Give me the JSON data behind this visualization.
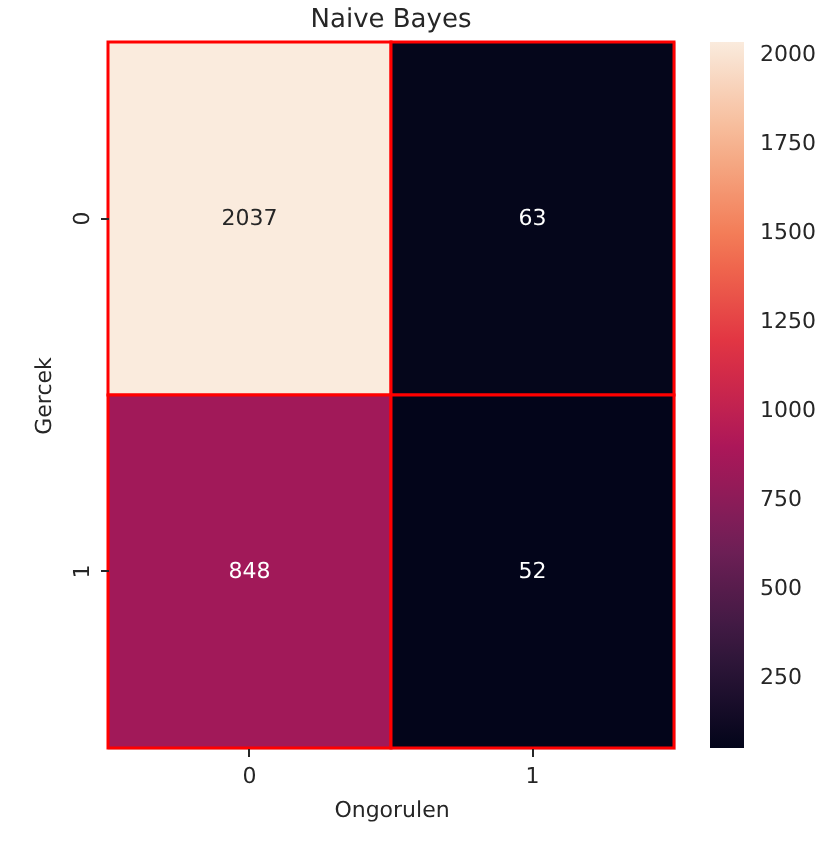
{
  "chart_data": {
    "type": "heatmap",
    "title": "Naive Bayes",
    "xlabel": "Ongorulen",
    "ylabel": "Gercek",
    "categories": [
      "0",
      "1"
    ],
    "y_categories": [
      "0",
      "1"
    ],
    "cells": [
      [
        2037,
        63
      ],
      [
        848,
        52
      ]
    ],
    "clim": [
      52,
      2037
    ],
    "cticks": [
      250,
      500,
      750,
      1000,
      1250,
      1500,
      1750,
      2000
    ],
    "data_labels": true
  }
}
